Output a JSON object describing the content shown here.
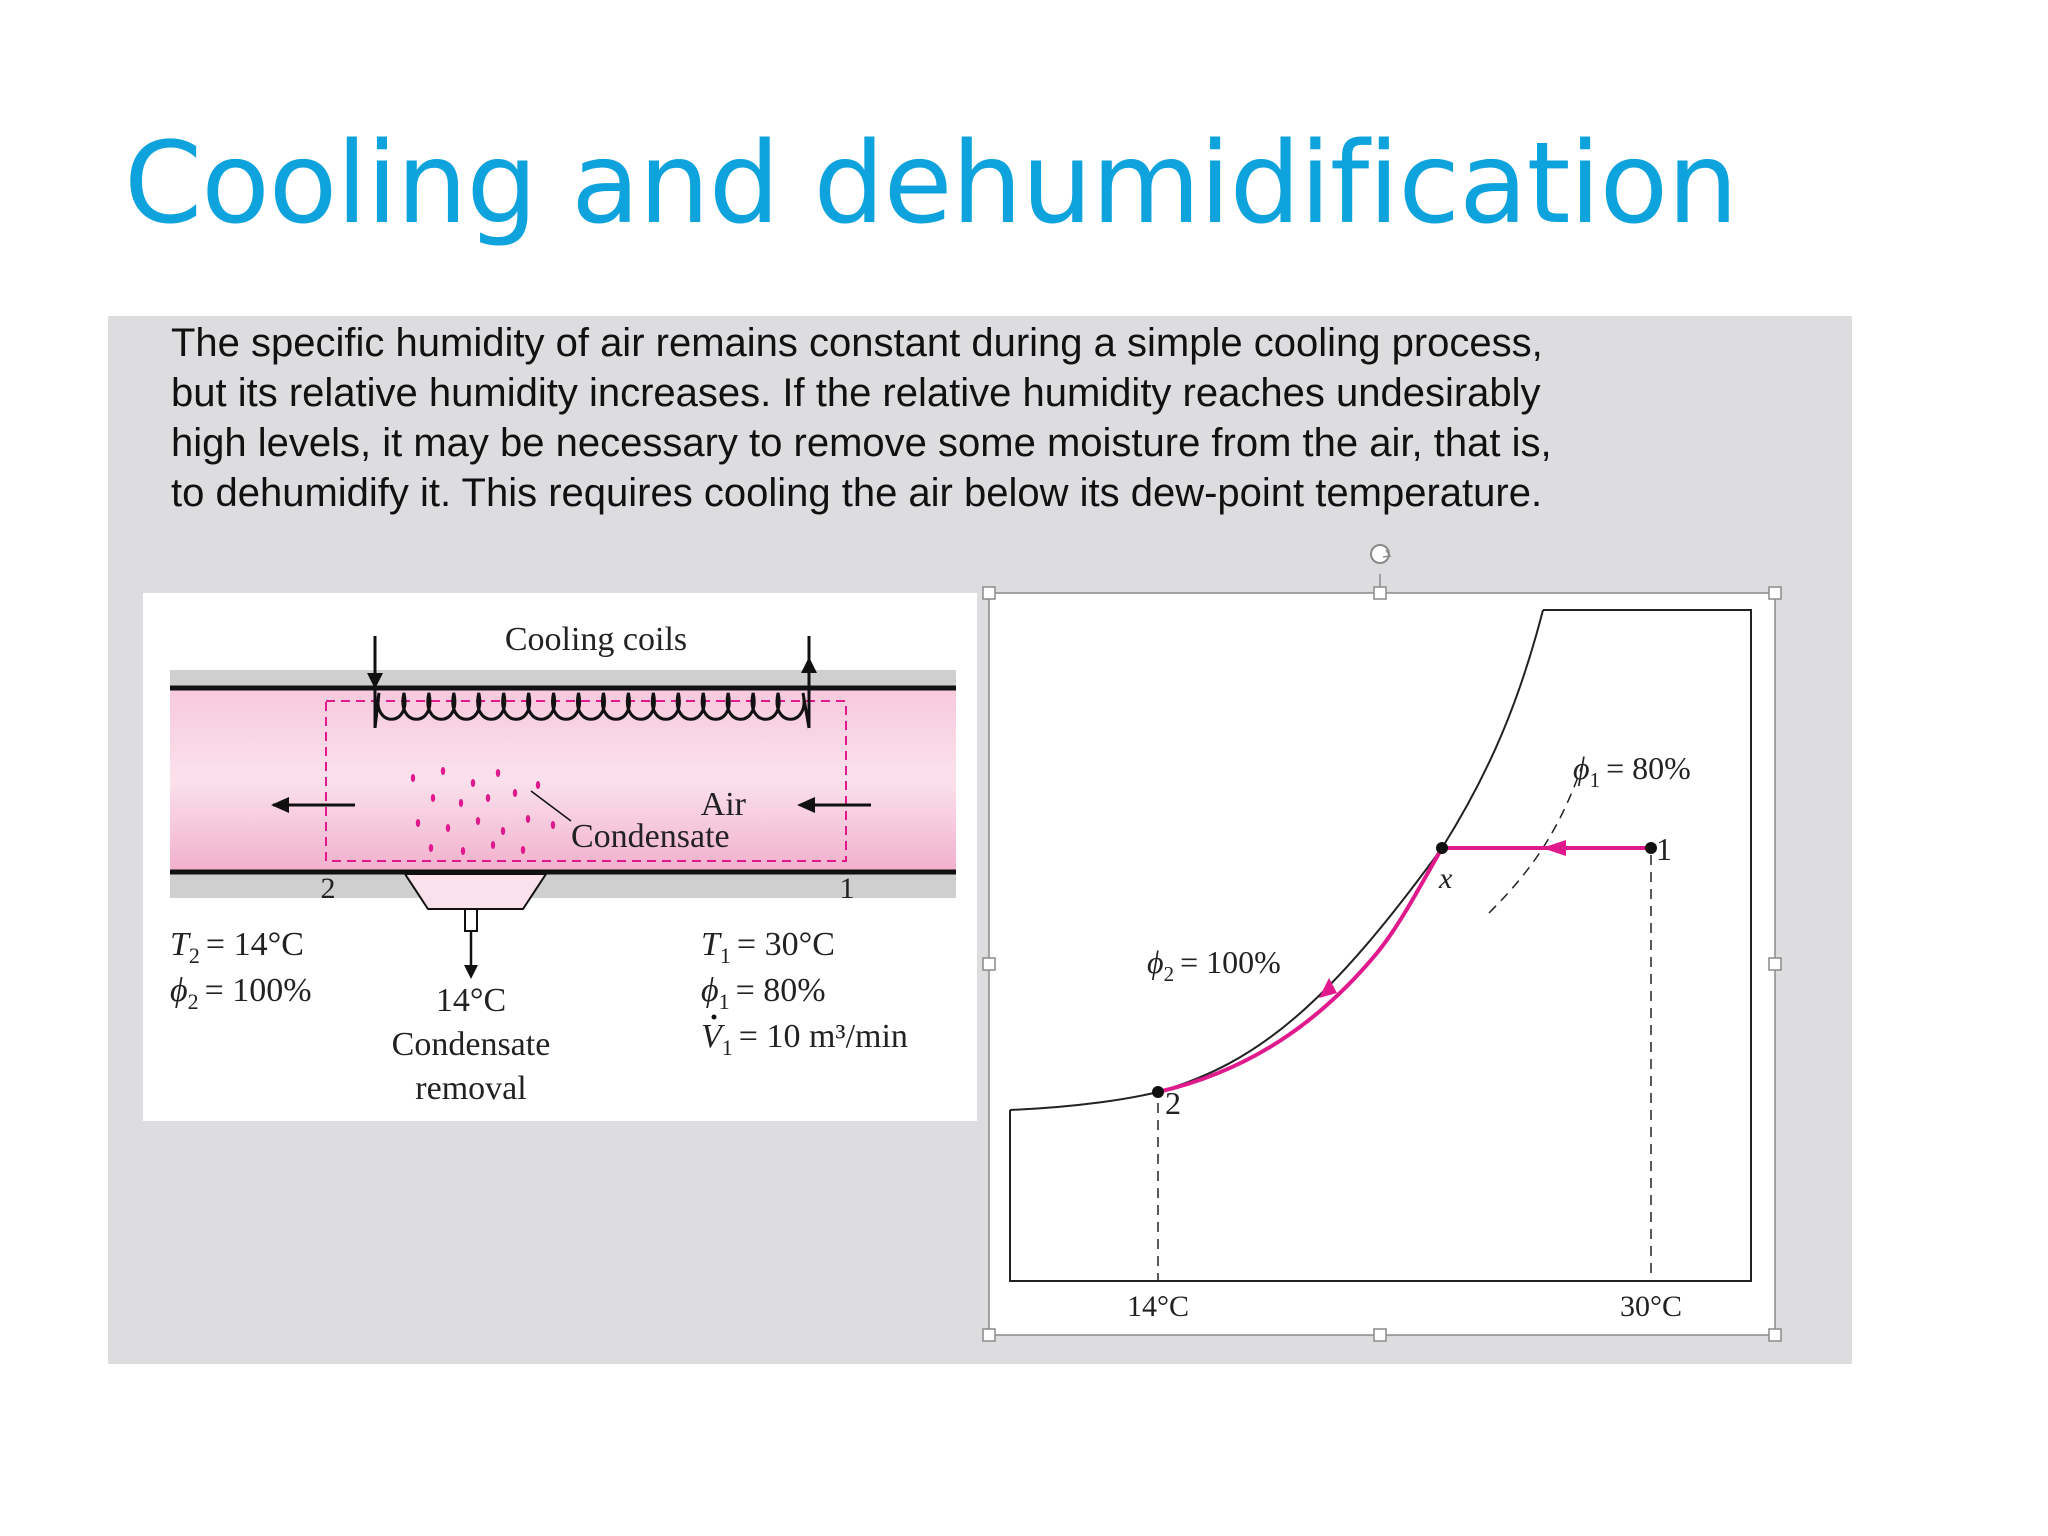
{
  "slide": {
    "title": "Cooling and dehumidification",
    "paragraph_lines": [
      "The specific humidity of air remains constant during a simple cooling process,",
      "but its relative humidity increases. If the relative humidity reaches undesirably",
      "high levels, it may be necessary to remove some moisture from the air, that is,",
      "to dehumidify it. This requires cooling the air below its dew-point temperature."
    ]
  },
  "duct": {
    "coils_label": "Cooling coils",
    "air_label": "Air",
    "condensate_label": "Condensate",
    "state2_label": "2",
    "state1_label": "1",
    "t2_value": "= 14°C",
    "phi2_value": "= 100%",
    "t1_value": "= 30°C",
    "phi1_value": "= 80%",
    "v1_value": "= 10 m³/min",
    "removal_temp": "14°C",
    "removal_line1": "Condensate",
    "removal_line2": "removal"
  },
  "chart": {
    "phi1_value": "= 80%",
    "phi2_value": "= 100%",
    "point1_label": "1",
    "point2_label": "2",
    "pointx_label": "x",
    "xtick_left": "14°C",
    "xtick_right": "30°C"
  },
  "colors": {
    "title": "#0ea3dc",
    "process_line": "#e0198c",
    "duct_fill": "#f3b5d0",
    "panel_bg": "#dddcdf"
  }
}
